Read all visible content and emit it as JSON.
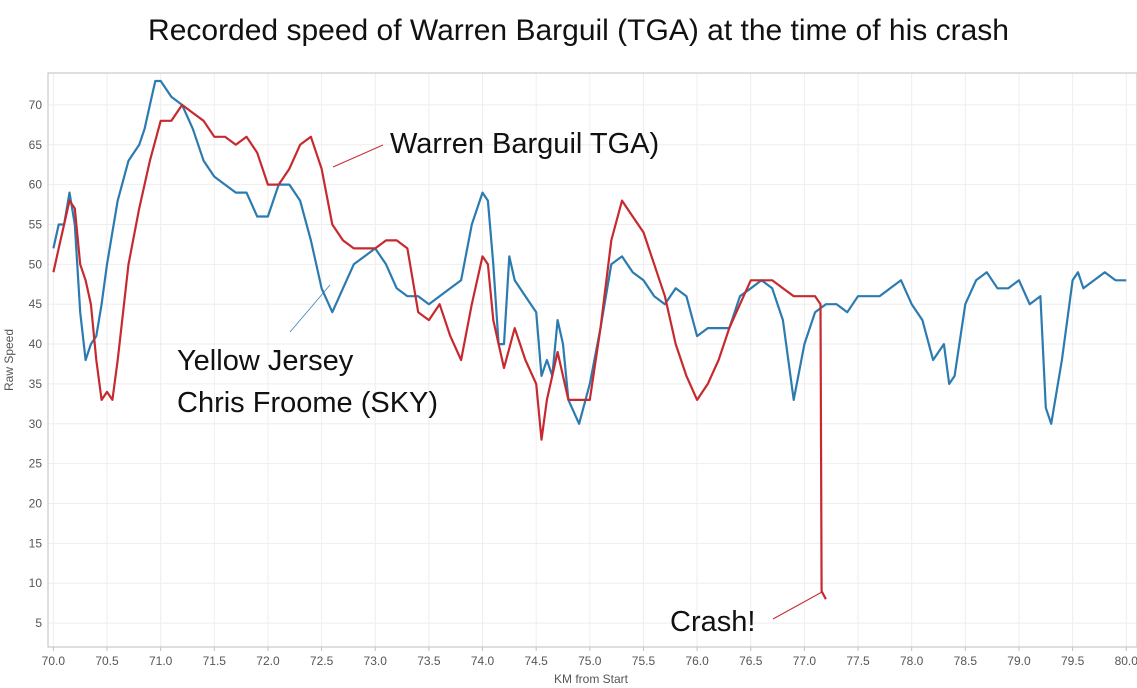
{
  "chart_data": {
    "type": "line",
    "title": "Recorded speed of  Warren Barguil (TGA) at the time of his crash",
    "xlabel": "KM from Start",
    "ylabel": "Raw Speed",
    "xlim": [
      69.95,
      80.1
    ],
    "ylim": [
      2,
      74
    ],
    "xticks": [
      "70.0",
      "70.5",
      "71.0",
      "71.5",
      "72.0",
      "72.5",
      "73.0",
      "73.5",
      "74.0",
      "74.5",
      "75.0",
      "75.5",
      "76.0",
      "76.5",
      "77.0",
      "77.5",
      "78.0",
      "78.5",
      "79.0",
      "79.5",
      "80.0"
    ],
    "yticks": [
      "5",
      "10",
      "15",
      "20",
      "25",
      "30",
      "35",
      "40",
      "45",
      "50",
      "55",
      "60",
      "65",
      "70"
    ],
    "grid": true,
    "legend": "none",
    "series": [
      {
        "color": "#2c7bb0",
        "points": [
          [
            70.0,
            52
          ],
          [
            70.05,
            55
          ],
          [
            70.1,
            55
          ],
          [
            70.15,
            59
          ],
          [
            70.2,
            55
          ],
          [
            70.25,
            44
          ],
          [
            70.3,
            38
          ],
          [
            70.35,
            40
          ],
          [
            70.4,
            41
          ],
          [
            70.45,
            45
          ],
          [
            70.5,
            50
          ],
          [
            70.6,
            58
          ],
          [
            70.7,
            63
          ],
          [
            70.8,
            65
          ],
          [
            70.85,
            67
          ],
          [
            70.9,
            70
          ],
          [
            70.95,
            73
          ],
          [
            71.0,
            73
          ],
          [
            71.1,
            71
          ],
          [
            71.2,
            70
          ],
          [
            71.3,
            67
          ],
          [
            71.4,
            63
          ],
          [
            71.5,
            61
          ],
          [
            71.6,
            60
          ],
          [
            71.7,
            59
          ],
          [
            71.8,
            59
          ],
          [
            71.9,
            56
          ],
          [
            72.0,
            56
          ],
          [
            72.1,
            60
          ],
          [
            72.2,
            60
          ],
          [
            72.3,
            58
          ],
          [
            72.4,
            53
          ],
          [
            72.5,
            47
          ],
          [
            72.6,
            44
          ],
          [
            72.7,
            47
          ],
          [
            72.8,
            50
          ],
          [
            72.9,
            51
          ],
          [
            73.0,
            52
          ],
          [
            73.1,
            50
          ],
          [
            73.2,
            47
          ],
          [
            73.3,
            46
          ],
          [
            73.4,
            46
          ],
          [
            73.5,
            45
          ],
          [
            73.6,
            46
          ],
          [
            73.7,
            47
          ],
          [
            73.8,
            48
          ],
          [
            73.9,
            55
          ],
          [
            74.0,
            59
          ],
          [
            74.05,
            58
          ],
          [
            74.1,
            50
          ],
          [
            74.15,
            40
          ],
          [
            74.2,
            40
          ],
          [
            74.25,
            51
          ],
          [
            74.3,
            48
          ],
          [
            74.4,
            46
          ],
          [
            74.5,
            44
          ],
          [
            74.55,
            36
          ],
          [
            74.6,
            38
          ],
          [
            74.65,
            36
          ],
          [
            74.7,
            43
          ],
          [
            74.75,
            40
          ],
          [
            74.8,
            33
          ],
          [
            74.9,
            30
          ],
          [
            75.0,
            35
          ],
          [
            75.1,
            42
          ],
          [
            75.2,
            50
          ],
          [
            75.3,
            51
          ],
          [
            75.4,
            49
          ],
          [
            75.5,
            48
          ],
          [
            75.6,
            46
          ],
          [
            75.7,
            45
          ],
          [
            75.8,
            47
          ],
          [
            75.9,
            46
          ],
          [
            76.0,
            41
          ],
          [
            76.1,
            42
          ],
          [
            76.2,
            42
          ],
          [
            76.3,
            42
          ],
          [
            76.4,
            46
          ],
          [
            76.5,
            47
          ],
          [
            76.6,
            48
          ],
          [
            76.7,
            47
          ],
          [
            76.8,
            43
          ],
          [
            76.9,
            33
          ],
          [
            77.0,
            40
          ],
          [
            77.1,
            44
          ],
          [
            77.2,
            45
          ],
          [
            77.3,
            45
          ],
          [
            77.4,
            44
          ],
          [
            77.5,
            46
          ],
          [
            77.6,
            46
          ],
          [
            77.7,
            46
          ],
          [
            77.8,
            47
          ],
          [
            77.9,
            48
          ],
          [
            78.0,
            45
          ],
          [
            78.1,
            43
          ],
          [
            78.2,
            38
          ],
          [
            78.3,
            40
          ],
          [
            78.35,
            35
          ],
          [
            78.4,
            36
          ],
          [
            78.5,
            45
          ],
          [
            78.6,
            48
          ],
          [
            78.7,
            49
          ],
          [
            78.8,
            47
          ],
          [
            78.9,
            47
          ],
          [
            79.0,
            48
          ],
          [
            79.1,
            45
          ],
          [
            79.2,
            46
          ],
          [
            79.25,
            32
          ],
          [
            79.3,
            30
          ],
          [
            79.4,
            38
          ],
          [
            79.5,
            48
          ],
          [
            79.55,
            49
          ],
          [
            79.6,
            47
          ],
          [
            79.7,
            48
          ],
          [
            79.8,
            49
          ],
          [
            79.9,
            48
          ],
          [
            80.0,
            48
          ]
        ]
      },
      {
        "color": "#c62a2f",
        "points": [
          [
            70.0,
            49
          ],
          [
            70.05,
            52
          ],
          [
            70.1,
            55
          ],
          [
            70.15,
            58
          ],
          [
            70.2,
            57
          ],
          [
            70.25,
            50
          ],
          [
            70.3,
            48
          ],
          [
            70.35,
            45
          ],
          [
            70.4,
            38
          ],
          [
            70.45,
            33
          ],
          [
            70.5,
            34
          ],
          [
            70.55,
            33
          ],
          [
            70.6,
            38
          ],
          [
            70.7,
            50
          ],
          [
            70.8,
            57
          ],
          [
            70.9,
            63
          ],
          [
            71.0,
            68
          ],
          [
            71.1,
            68
          ],
          [
            71.2,
            70
          ],
          [
            71.3,
            69
          ],
          [
            71.4,
            68
          ],
          [
            71.5,
            66
          ],
          [
            71.6,
            66
          ],
          [
            71.7,
            65
          ],
          [
            71.8,
            66
          ],
          [
            71.9,
            64
          ],
          [
            72.0,
            60
          ],
          [
            72.1,
            60
          ],
          [
            72.2,
            62
          ],
          [
            72.3,
            65
          ],
          [
            72.4,
            66
          ],
          [
            72.5,
            62
          ],
          [
            72.6,
            55
          ],
          [
            72.7,
            53
          ],
          [
            72.8,
            52
          ],
          [
            72.9,
            52
          ],
          [
            73.0,
            52
          ],
          [
            73.1,
            53
          ],
          [
            73.2,
            53
          ],
          [
            73.3,
            52
          ],
          [
            73.4,
            44
          ],
          [
            73.5,
            43
          ],
          [
            73.6,
            45
          ],
          [
            73.7,
            41
          ],
          [
            73.8,
            38
          ],
          [
            73.9,
            45
          ],
          [
            74.0,
            51
          ],
          [
            74.05,
            50
          ],
          [
            74.1,
            43
          ],
          [
            74.15,
            40
          ],
          [
            74.2,
            37
          ],
          [
            74.3,
            42
          ],
          [
            74.4,
            38
          ],
          [
            74.5,
            35
          ],
          [
            74.55,
            28
          ],
          [
            74.6,
            33
          ],
          [
            74.7,
            39
          ],
          [
            74.8,
            33
          ],
          [
            74.9,
            33
          ],
          [
            75.0,
            33
          ],
          [
            75.1,
            42
          ],
          [
            75.2,
            53
          ],
          [
            75.3,
            58
          ],
          [
            75.4,
            56
          ],
          [
            75.5,
            54
          ],
          [
            75.6,
            50
          ],
          [
            75.7,
            46
          ],
          [
            75.8,
            40
          ],
          [
            75.9,
            36
          ],
          [
            76.0,
            33
          ],
          [
            76.1,
            35
          ],
          [
            76.2,
            38
          ],
          [
            76.3,
            42
          ],
          [
            76.4,
            45
          ],
          [
            76.5,
            48
          ],
          [
            76.6,
            48
          ],
          [
            76.7,
            48
          ],
          [
            76.8,
            47
          ],
          [
            76.9,
            46
          ],
          [
            77.0,
            46
          ],
          [
            77.1,
            46
          ],
          [
            77.15,
            45
          ],
          [
            77.16,
            9
          ],
          [
            77.2,
            8
          ]
        ]
      }
    ],
    "annotations": [
      {
        "text": "Warren Barguil TGA)"
      },
      {
        "text": "Yellow Jersey"
      },
      {
        "text": "Chris Froome (SKY)"
      },
      {
        "text": "Crash!"
      }
    ]
  }
}
